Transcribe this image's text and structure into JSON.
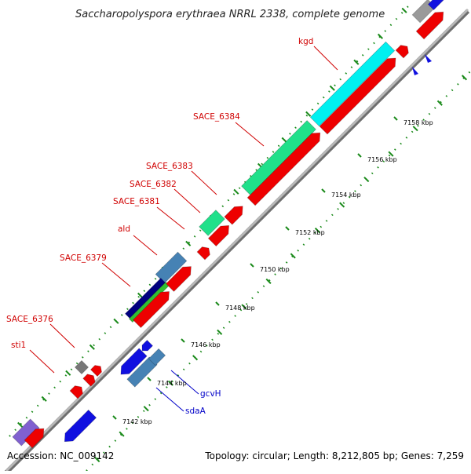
{
  "title": "Saccharopolyspora erythraea NRRL 2338, complete genome",
  "footer": {
    "accession": "Accession: NC_009142",
    "topology": "Topology: circular; Length: 8,212,805 bp; Genes: 7,259"
  },
  "gene_labels": {
    "kgd": "kgd",
    "sace_6384": "SACE_6384",
    "sace_6383": "SACE_6383",
    "sace_6382": "SACE_6382",
    "sace_6381": "SACE_6381",
    "ald": "ald",
    "sace_6379": "SACE_6379",
    "sace_6376": "SACE_6376",
    "sti1": "sti1",
    "gcvh": "gcvH",
    "sdaa": "sdaA"
  },
  "scale_labels": [
    "7142 kbp",
    "7144 kbp",
    "7146 kbp",
    "7148 kbp",
    "7150 kbp",
    "7152 kbp",
    "7154 kbp",
    "7156 kbp",
    "7158 kbp"
  ],
  "colors": {
    "cds": "#ee0000",
    "cds_shade": "#b00000",
    "blue_gene": "#1010e0",
    "steel": "#4682b4",
    "cyan": "#00f0f0",
    "mint": "#20e08a",
    "navy": "#000080",
    "green": "#30c030",
    "gray": "#777777",
    "purple": "#8060d0",
    "backbone": "#9a9a9a",
    "dots": "#1a8a1a"
  }
}
